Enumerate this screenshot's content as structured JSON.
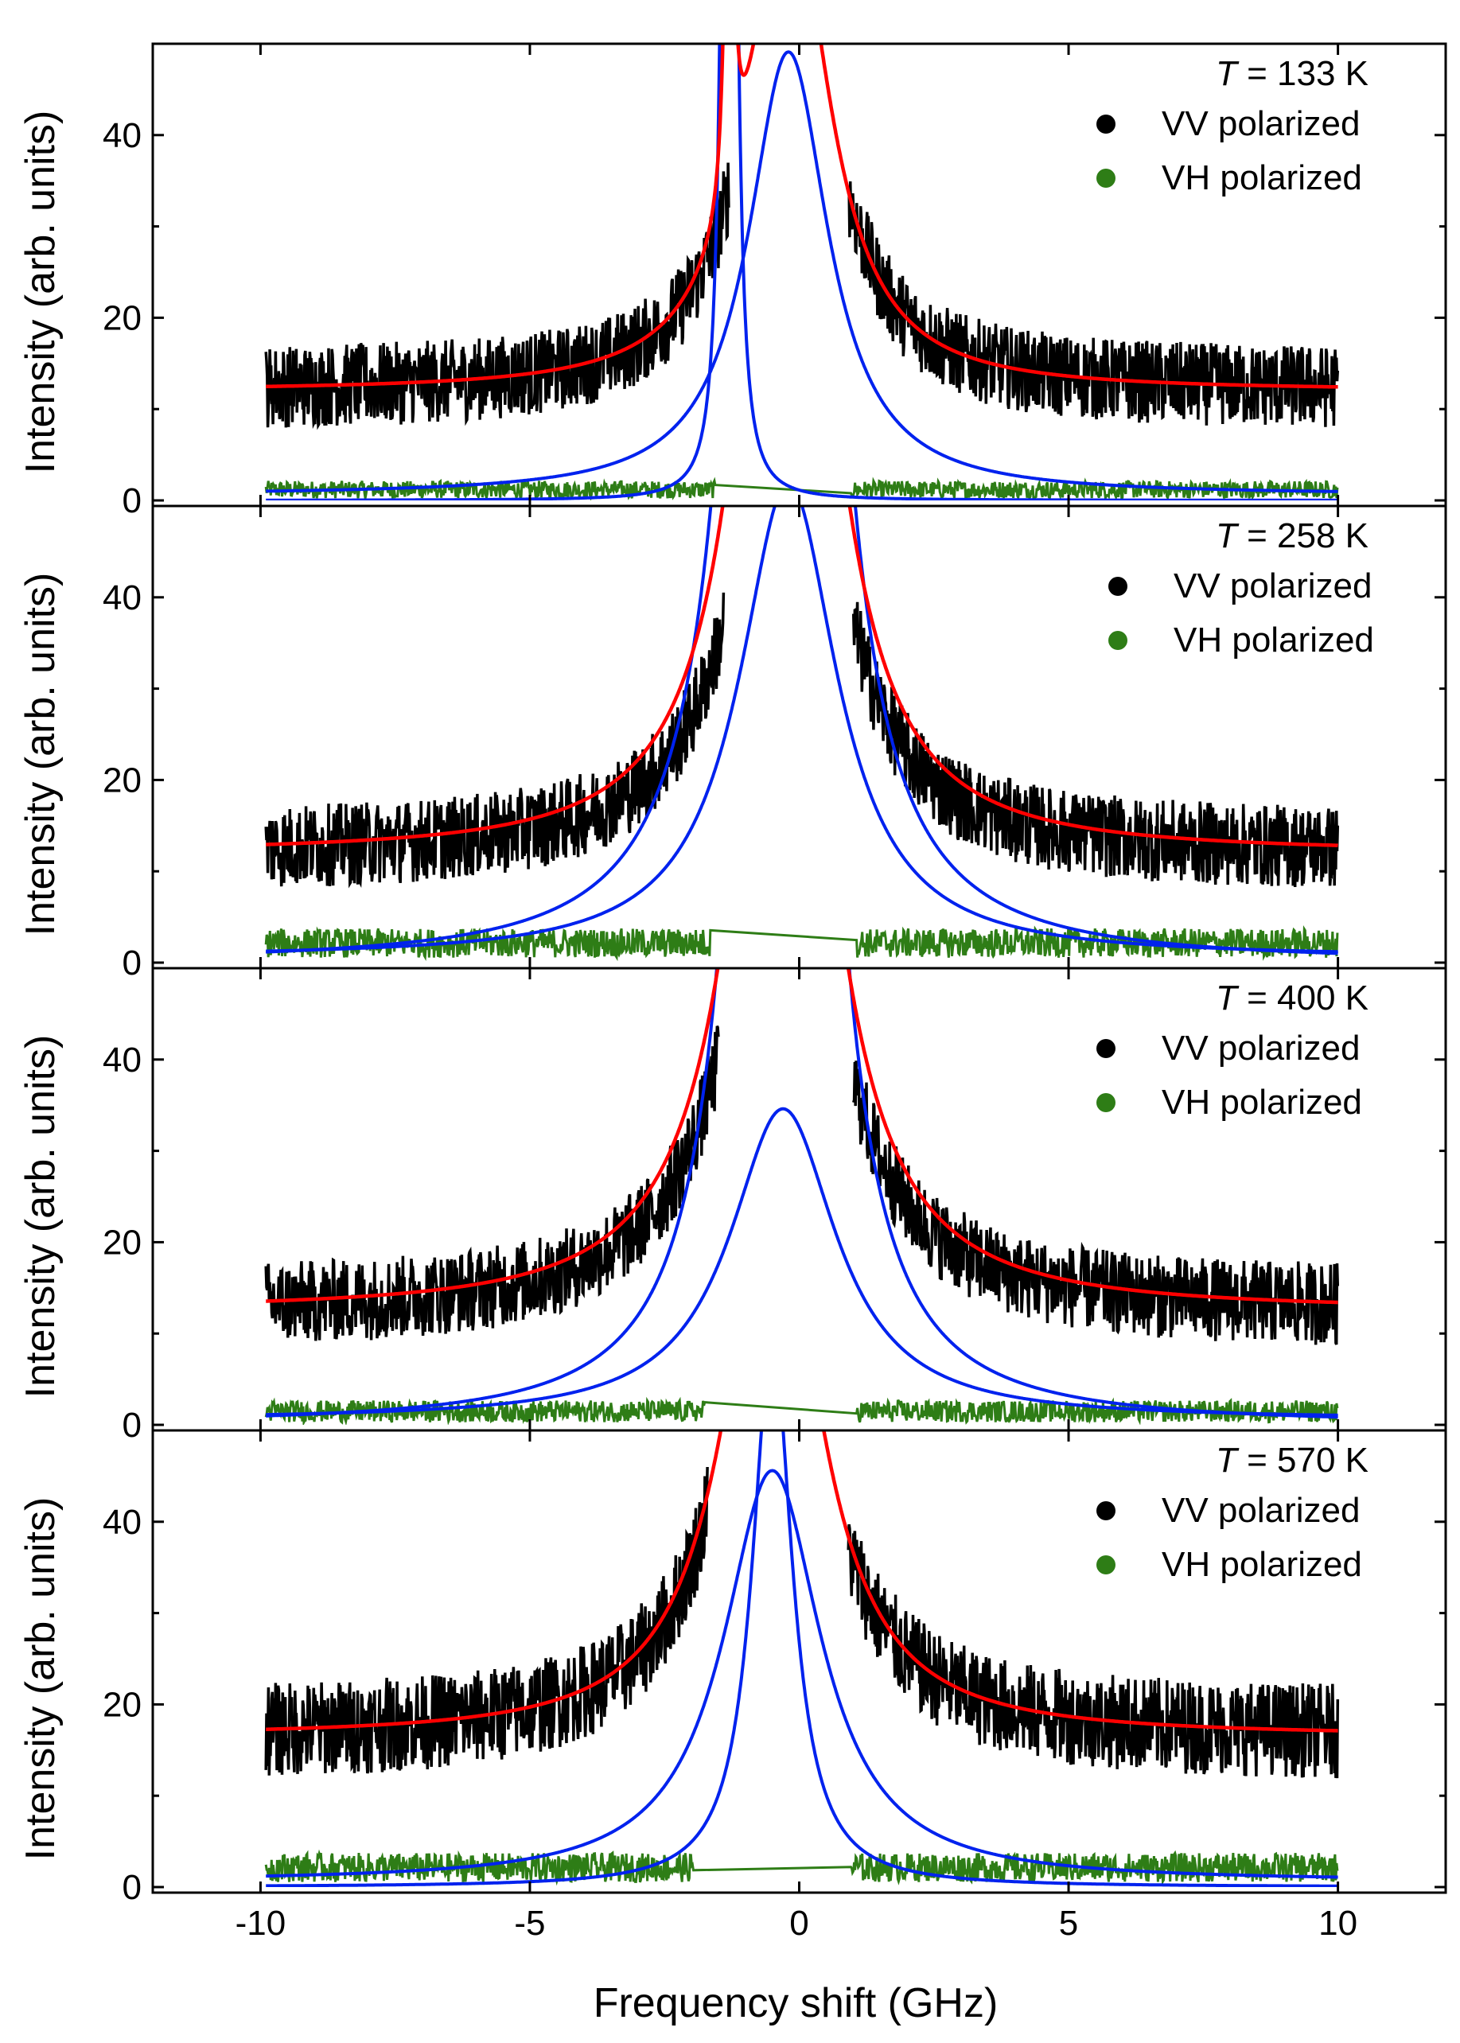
{
  "chart_data": {
    "type": "line",
    "xlabel": "Frequency shift (GHz)",
    "ylabel": "Intensity (arb. units)",
    "xlim": [
      -12,
      12
    ],
    "ylim": [
      0,
      50
    ],
    "x_ticks": [
      -10,
      -5,
      0,
      5,
      10
    ],
    "y_ticks": [
      0,
      20,
      40
    ],
    "grid": false,
    "legend_position": "top-right",
    "legend": [
      {
        "label": "VV polarized",
        "color": "#000000",
        "marker": "circle"
      },
      {
        "label": "VH polarized",
        "color": "#2e7d16",
        "marker": "circle"
      }
    ],
    "fit_colors": {
      "total_fit": "#ff0000",
      "components": "#0022ee"
    },
    "panels": [
      {
        "temperature_label": "T",
        "temperature_value": "= 133 K",
        "series": [
          {
            "name": "VV polarized",
            "kind": "data",
            "baseline": 12,
            "central_peak_amplitude": 55,
            "central_peak_width": 0.9,
            "noise": 3.5,
            "gap": [
              -1.3,
              0.9
            ]
          },
          {
            "name": "VH polarized",
            "kind": "data",
            "baseline": 0.8,
            "noise": 1.2
          },
          {
            "name": "fit",
            "kind": "fit",
            "baseline": 12,
            "amplitude": 55,
            "width": 0.9,
            "center": -0.2
          },
          {
            "name": "component-1",
            "kind": "fit",
            "center": -0.2,
            "amplitude": 48.5,
            "width": 0.9
          },
          {
            "name": "component-2",
            "kind": "fit",
            "center": -1.3,
            "amplitude": 300,
            "width": 0.08
          }
        ]
      },
      {
        "temperature_label": "T",
        "temperature_value": "= 258 K",
        "series": [
          {
            "name": "VV polarized",
            "kind": "data",
            "baseline": 12,
            "central_peak_amplitude": 55,
            "central_peak_width": 1.1,
            "noise": 3.5,
            "gap": [
              -1.4,
              1.0
            ]
          },
          {
            "name": "VH polarized",
            "kind": "data",
            "baseline": 1.5,
            "noise": 2.0
          },
          {
            "name": "fit",
            "kind": "fit",
            "baseline": 12,
            "amplitude": 55,
            "width": 1.1,
            "center": -0.2
          },
          {
            "name": "component-1",
            "kind": "fit",
            "center": -0.2,
            "amplitude": 52,
            "width": 1.1
          },
          {
            "name": "component-2",
            "kind": "fit",
            "center": -0.3,
            "amplitude": 300,
            "width": 0.6
          }
        ]
      },
      {
        "temperature_label": "T",
        "temperature_value": "= 400 K",
        "series": [
          {
            "name": "VV polarized",
            "kind": "data",
            "baseline": 12.5,
            "central_peak_amplitude": 55,
            "central_peak_width": 1.2,
            "noise": 3.5,
            "gap": [
              -1.5,
              1.0
            ]
          },
          {
            "name": "VH polarized",
            "kind": "data",
            "baseline": 1.0,
            "noise": 1.5
          },
          {
            "name": "fit",
            "kind": "fit",
            "baseline": 12.5,
            "amplitude": 55,
            "width": 1.2,
            "center": -0.3
          },
          {
            "name": "component-1",
            "kind": "fit",
            "center": -0.3,
            "amplitude": 34,
            "width": 1.2
          },
          {
            "name": "component-2",
            "kind": "fit",
            "center": -0.3,
            "amplitude": 300,
            "width": 0.55
          }
        ]
      },
      {
        "temperature_label": "T",
        "temperature_value": "= 570 K",
        "series": [
          {
            "name": "VV polarized",
            "kind": "data",
            "baseline": 16.5,
            "central_peak_amplitude": 55,
            "central_peak_width": 1.1,
            "noise": 4.0,
            "gap": [
              -1.7,
              0.9
            ]
          },
          {
            "name": "VH polarized",
            "kind": "data",
            "baseline": 1.5,
            "noise": 2.0
          },
          {
            "name": "fit",
            "kind": "fit",
            "baseline": 16.5,
            "amplitude": 55,
            "width": 1.1,
            "center": -0.5
          },
          {
            "name": "component-1",
            "kind": "fit",
            "center": -0.5,
            "amplitude": 45,
            "width": 1.1
          },
          {
            "name": "component-2",
            "kind": "fit",
            "center": -0.5,
            "amplitude": 60,
            "width": 0.45
          }
        ]
      }
    ]
  }
}
